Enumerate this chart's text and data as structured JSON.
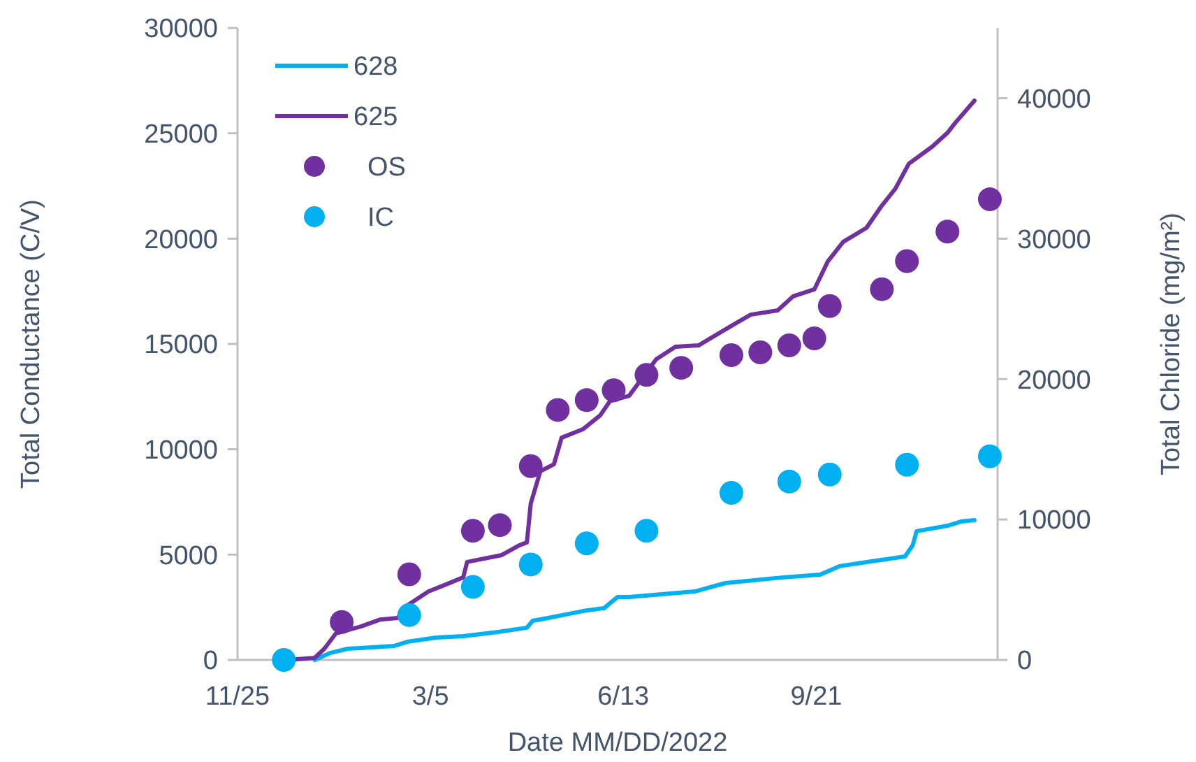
{
  "chart_data": {
    "type": "line",
    "xlabel": "Date MM/DD/2022",
    "ylabel": "Total Conductance (C/V)",
    "y2label": "Total Chloride (mg/m²)",
    "xlim": [
      "2021-11-25",
      "2022-12-24"
    ],
    "xticks": [
      {
        "value": "2021-11-25",
        "label": "11/25"
      },
      {
        "value": "2022-03-05",
        "label": "3/5"
      },
      {
        "value": "2022-06-13",
        "label": "6/13"
      },
      {
        "value": "2022-09-21",
        "label": "9/21"
      }
    ],
    "ylim": [
      0,
      30000
    ],
    "yticks": [
      0,
      5000,
      10000,
      15000,
      20000,
      25000,
      30000
    ],
    "y2lim": [
      0,
      45000
    ],
    "y2ticks": [
      0,
      10000,
      20000,
      30000,
      40000
    ],
    "legend": "top left",
    "grid": false,
    "series": [
      {
        "name": "628",
        "color": "#00b0f0",
        "marker": "none",
        "x": [
          "2022-01-04",
          "2022-01-12",
          "2022-01-21",
          "2022-02-14",
          "2022-02-21",
          "2022-03-08",
          "2022-03-22",
          "2022-04-09",
          "2022-04-24",
          "2022-04-27",
          "2022-05-05",
          "2022-05-23",
          "2022-06-03",
          "2022-06-10",
          "2022-06-16",
          "2022-07-20",
          "2022-08-05",
          "2022-09-04",
          "2022-09-23",
          "2022-10-03",
          "2022-10-22",
          "2022-11-06",
          "2022-11-10",
          "2022-11-12",
          "2022-11-28",
          "2022-12-05",
          "2022-12-12"
        ],
        "values": [
          0,
          330,
          530,
          660,
          860,
          1060,
          1130,
          1330,
          1530,
          1860,
          1990,
          2320,
          2460,
          2990,
          2990,
          3250,
          3650,
          3920,
          4050,
          4450,
          4710,
          4910,
          5440,
          6110,
          6370,
          6570,
          6640
        ]
      },
      {
        "name": "625",
        "color": "#7030a0",
        "marker": "none",
        "x": [
          "2021-12-21",
          "2022-01-04",
          "2022-01-09",
          "2022-01-15",
          "2022-01-28",
          "2022-02-07",
          "2022-02-16",
          "2022-02-21",
          "2022-03-04",
          "2022-03-13",
          "2022-03-22",
          "2022-03-24",
          "2022-04-11",
          "2022-04-20",
          "2022-04-24",
          "2022-04-26",
          "2022-05-01",
          "2022-05-08",
          "2022-05-12",
          "2022-05-23",
          "2022-06-01",
          "2022-06-06",
          "2022-06-16",
          "2022-06-30",
          "2022-07-10",
          "2022-07-22",
          "2022-08-08",
          "2022-08-18",
          "2022-09-01",
          "2022-09-09",
          "2022-09-20",
          "2022-09-27",
          "2022-10-05",
          "2022-10-17",
          "2022-10-25",
          "2022-11-01",
          "2022-11-08",
          "2022-11-20",
          "2022-11-28",
          "2022-12-02",
          "2022-12-12"
        ],
        "values": [
          0,
          100,
          530,
          1260,
          1590,
          1920,
          1990,
          2590,
          3250,
          3580,
          3920,
          4650,
          4980,
          5440,
          5580,
          7430,
          8960,
          9290,
          10550,
          10950,
          11610,
          12280,
          12540,
          14270,
          14870,
          14930,
          15860,
          16390,
          16590,
          17260,
          17590,
          18920,
          19850,
          20510,
          21570,
          22370,
          23560,
          24360,
          25020,
          25490,
          26550
        ]
      },
      {
        "name": "OS",
        "type": "scatter",
        "axis": "y2",
        "color": "#7030a0",
        "marker": "circle",
        "x": [
          "2022-01-18",
          "2022-02-22",
          "2022-03-27",
          "2022-04-10",
          "2022-04-26",
          "2022-05-10",
          "2022-05-25",
          "2022-06-08",
          "2022-06-25",
          "2022-07-13",
          "2022-08-08",
          "2022-08-23",
          "2022-09-07",
          "2022-09-20",
          "2022-09-28",
          "2022-10-25",
          "2022-11-07",
          "2022-11-28",
          "2022-12-20"
        ],
        "values": [
          2700,
          6100,
          9200,
          9600,
          13800,
          17800,
          18500,
          19200,
          20300,
          20800,
          21700,
          21900,
          22400,
          22900,
          25200,
          26400,
          28400,
          30500,
          32800
        ]
      },
      {
        "name": "IC",
        "type": "scatter",
        "axis": "y2",
        "color": "#00b0f0",
        "marker": "circle",
        "x": [
          "2021-12-19",
          "2022-02-22",
          "2022-03-27",
          "2022-04-26",
          "2022-05-25",
          "2022-06-25",
          "2022-08-08",
          "2022-09-07",
          "2022-09-28",
          "2022-11-07",
          "2022-12-20"
        ],
        "values": [
          0,
          3200,
          5200,
          6800,
          8300,
          9200,
          11900,
          12700,
          13200,
          13900,
          14500
        ]
      }
    ]
  }
}
